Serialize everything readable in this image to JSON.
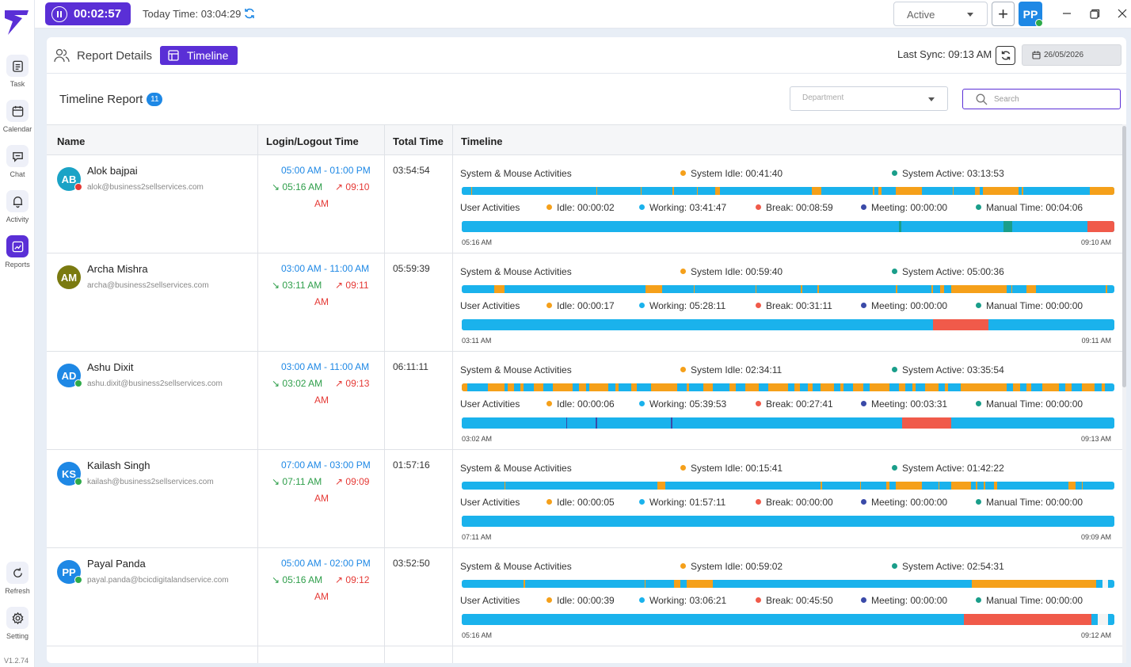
{
  "sidebar": {
    "items": [
      {
        "label": "Task",
        "icon": "task-icon"
      },
      {
        "label": "Calendar",
        "icon": "calendar-icon"
      },
      {
        "label": "Chat",
        "icon": "chat-icon"
      },
      {
        "label": "Activity",
        "icon": "bell-icon"
      },
      {
        "label": "Reports",
        "icon": "reports-icon"
      }
    ],
    "bottom": [
      {
        "label": "Refresh",
        "icon": "refresh-icon"
      },
      {
        "label": "Setting",
        "icon": "gear-icon"
      }
    ],
    "version": "V1.2.74"
  },
  "topbar": {
    "timer": "00:02:57",
    "today_time": "Today Time: 03:04:29",
    "status": "Active",
    "avatar": "PP"
  },
  "header": {
    "report_details": "Report Details",
    "timeline_tab": "Timeline",
    "last_sync": "Last Sync: 09:13 AM",
    "date": "26/05/2026"
  },
  "report": {
    "title": "Timeline Report",
    "count": "11",
    "department_placeholder": "Department",
    "search_placeholder": "Search"
  },
  "table": {
    "columns": [
      "Name",
      "Login/Logout Time",
      "Total Time",
      "Timeline"
    ],
    "labels": {
      "system_activities": "System & Mouse Activities",
      "user_activities": "User Activities"
    },
    "rows": [
      {
        "initials": "AB",
        "avatar_color": "#1ba3c6",
        "status_color": "#e53935",
        "name": "Alok bajpai",
        "email": "alok@business2sellservices.com",
        "schedule": "05:00 AM - 01:00 PM",
        "login": "05:16 AM",
        "logout": "09:10",
        "logout_suffix": "AM",
        "total": "03:54:54",
        "system_idle": "System Idle: 00:41:40",
        "system_active": "System Active: 03:13:53",
        "idle": "Idle: 00:00:02",
        "working": "Working: 03:41:47",
        "break": "Break: 00:08:59",
        "meeting": "Meeting: 00:00:00",
        "manual": "Manual Time: 00:04:06",
        "start": "05:16 AM",
        "end": "09:10 AM"
      },
      {
        "initials": "AM",
        "avatar_color": "#7a7a10",
        "status_color": "",
        "name": "Archa Mishra",
        "email": "archa@business2sellservices.com",
        "schedule": "03:00 AM - 11:00 AM",
        "login": "03:11 AM",
        "logout": "09:11",
        "logout_suffix": "AM",
        "total": "05:59:39",
        "system_idle": "System Idle: 00:59:40",
        "system_active": "System Active: 05:00:36",
        "idle": "Idle: 00:00:17",
        "working": "Working: 05:28:11",
        "break": "Break: 00:31:11",
        "meeting": "Meeting: 00:00:00",
        "manual": "Manual Time: 00:00:00",
        "start": "03:11 AM",
        "end": "09:11 AM"
      },
      {
        "initials": "AD",
        "avatar_color": "#1e88e5",
        "status_color": "#2eaa4a",
        "name": "Ashu Dixit",
        "email": "ashu.dixit@business2sellservices.com",
        "schedule": "03:00 AM - 11:00 AM",
        "login": "03:02 AM",
        "logout": "09:13",
        "logout_suffix": "AM",
        "total": "06:11:11",
        "system_idle": "System Idle: 02:34:11",
        "system_active": "System Active: 03:35:54",
        "idle": "Idle: 00:00:06",
        "working": "Working: 05:39:53",
        "break": "Break: 00:27:41",
        "meeting": "Meeting: 00:03:31",
        "manual": "Manual Time: 00:00:00",
        "start": "03:02 AM",
        "end": "09:13 AM"
      },
      {
        "initials": "KS",
        "avatar_color": "#1e88e5",
        "status_color": "#2eaa4a",
        "name": "Kailash Singh",
        "email": "kailash@business2sellservices.com",
        "schedule": "07:00 AM - 03:00 PM",
        "login": "07:11 AM",
        "logout": "09:09",
        "logout_suffix": "AM",
        "total": "01:57:16",
        "system_idle": "System Idle: 00:15:41",
        "system_active": "System Active: 01:42:22",
        "idle": "Idle: 00:00:05",
        "working": "Working: 01:57:11",
        "break": "Break: 00:00:00",
        "meeting": "Meeting: 00:00:00",
        "manual": "Manual Time: 00:00:00",
        "start": "07:11 AM",
        "end": "09:09 AM"
      },
      {
        "initials": "PP",
        "avatar_color": "#1e88e5",
        "status_color": "#2eaa4a",
        "name": "Payal Panda",
        "email": "payal.panda@bcicdigitalandservice.com",
        "schedule": "05:00 AM - 02:00 PM",
        "login": "05:16 AM",
        "logout": "09:12",
        "logout_suffix": "AM",
        "total": "03:52:50",
        "system_idle": "System Idle: 00:59:02",
        "system_active": "System Active: 02:54:31",
        "idle": "Idle: 00:00:39",
        "working": "Working: 03:06:21",
        "break": "Break: 00:45:50",
        "meeting": "Meeting: 00:00:00",
        "manual": "Manual Time: 00:00:00",
        "start": "05:16 AM",
        "end": "09:12 AM"
      }
    ]
  },
  "colors": {
    "accent": "#5a2fd6",
    "active": "#1ab2ec",
    "idle": "#f5a01a",
    "break": "#f05a4a",
    "meeting": "#3a4aa8",
    "manual": "#1a9e8a",
    "login": "#2e9e4a",
    "logout": "#e53935",
    "schedule": "#1e88e5"
  }
}
